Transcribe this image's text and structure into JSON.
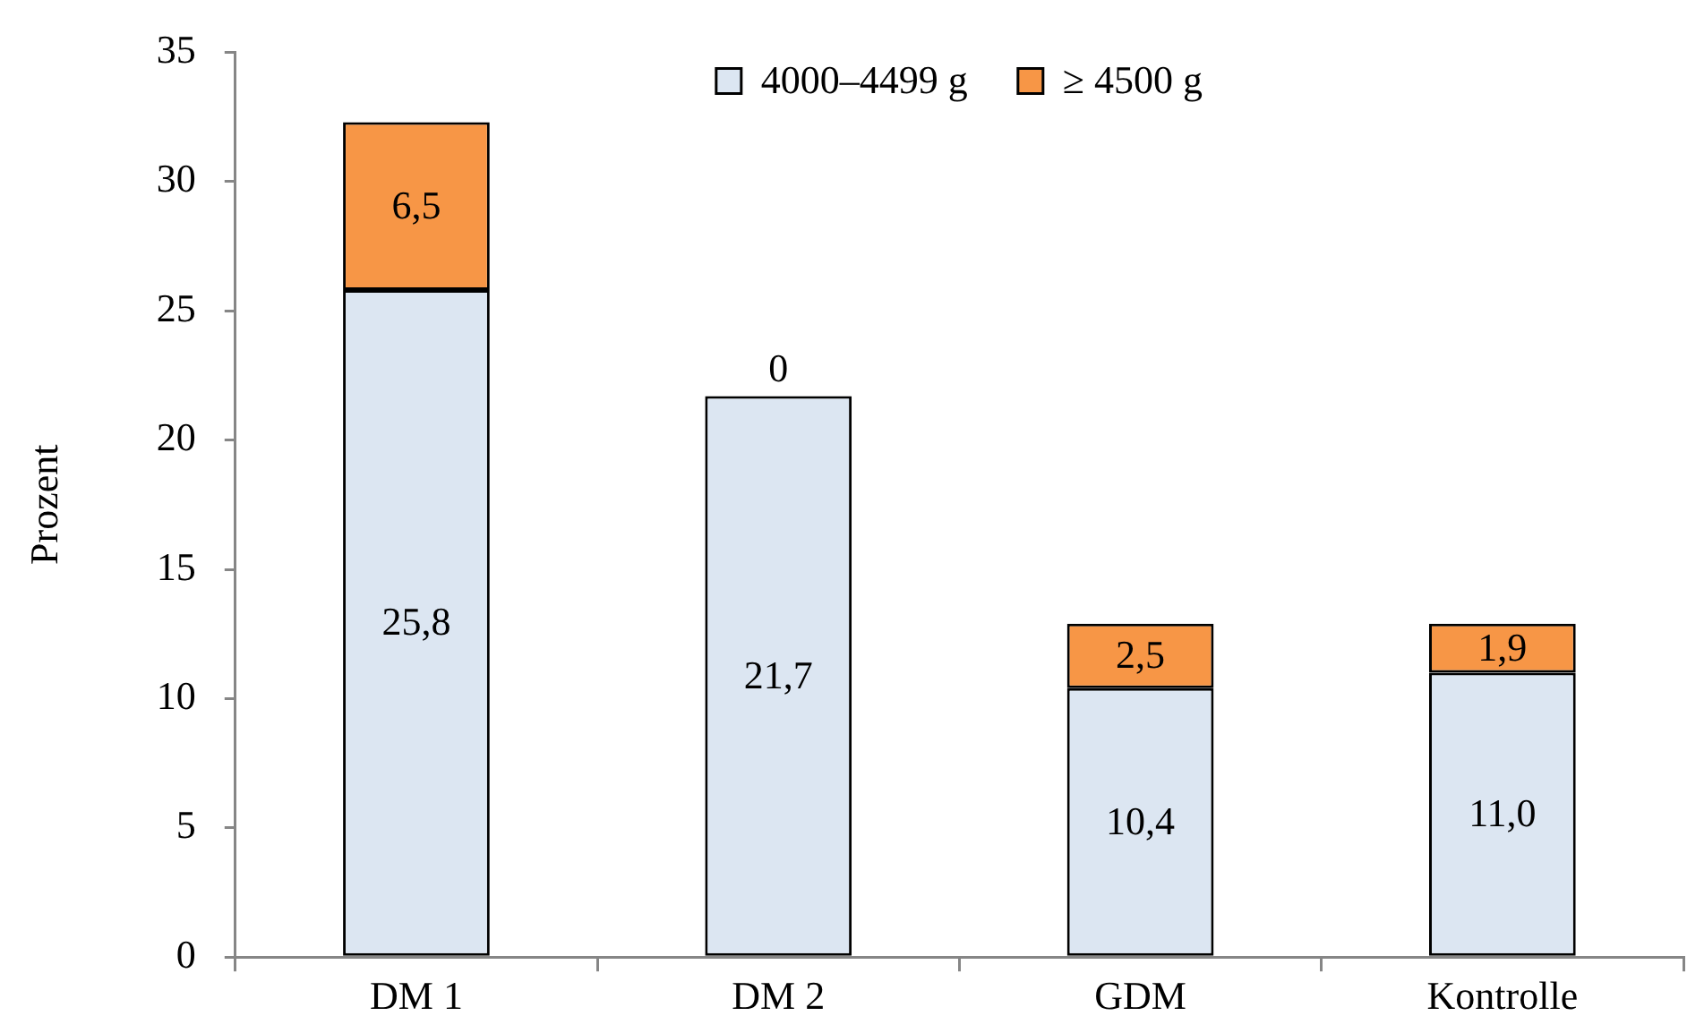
{
  "chart_data": {
    "type": "bar",
    "ylabel": "Prozent",
    "categories": [
      "DM 1",
      "DM 2",
      "GDM",
      "Kontrolle"
    ],
    "series": [
      {
        "name": "4000–4499 g",
        "color": "#dce6f2",
        "values": [
          25.8,
          21.7,
          10.4,
          11.0
        ],
        "value_labels": [
          "25,8",
          "21,7",
          "10,4",
          "11,0"
        ]
      },
      {
        "name": "≥ 4500 g",
        "color": "#f79646",
        "values": [
          6.5,
          0,
          2.5,
          1.9
        ],
        "value_labels": [
          "6,5",
          "0",
          "2,5",
          "1,9"
        ]
      }
    ],
    "stacked": true,
    "ylim": [
      0,
      35
    ],
    "yticks": [
      0,
      5,
      10,
      15,
      20,
      25,
      30,
      35
    ],
    "grid": false,
    "legend": "top"
  }
}
